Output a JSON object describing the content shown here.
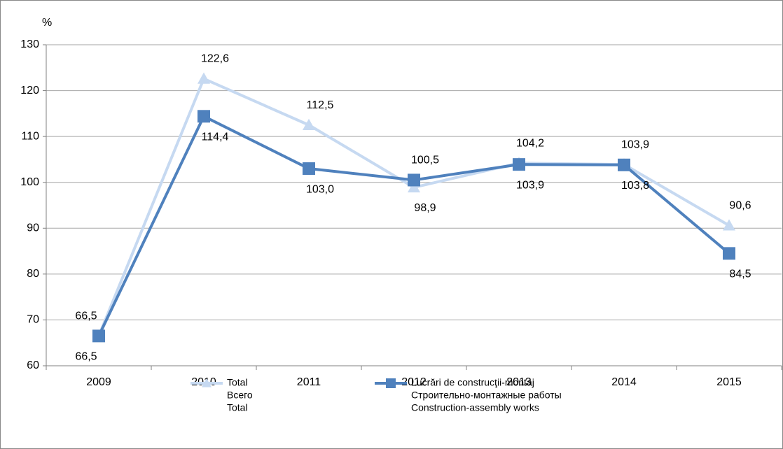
{
  "chart_data": {
    "type": "line",
    "y_label": "%",
    "categories": [
      "2009",
      "2010",
      "2011",
      "2012",
      "2013",
      "2014",
      "2015"
    ],
    "series": [
      {
        "name": [
          "Total",
          "Всего",
          "Total"
        ],
        "color": "#c6d9f1",
        "marker": "triangle",
        "values": [
          66.5,
          122.6,
          112.5,
          98.9,
          104.2,
          103.9,
          90.6
        ],
        "value_labels": [
          "66,5",
          "122,6",
          "112,5",
          "98,9",
          "104,2",
          "103,9",
          "90,6"
        ]
      },
      {
        "name": [
          "Lucrări de construcţii-montaj",
          "Строительно-монтажные работы",
          "Construction-assembly works"
        ],
        "color": "#4f81bd",
        "marker": "square",
        "values": [
          66.5,
          114.4,
          103.0,
          100.5,
          103.9,
          103.8,
          84.5
        ],
        "value_labels": [
          "66,5",
          "114,4",
          "103,0",
          "100,5",
          "103,9",
          "103,8",
          "84,5"
        ]
      }
    ],
    "ylim": [
      60,
      130
    ],
    "yticks": [
      60,
      70,
      80,
      90,
      100,
      110,
      120,
      130
    ],
    "grid": true,
    "legend": "bottom"
  }
}
